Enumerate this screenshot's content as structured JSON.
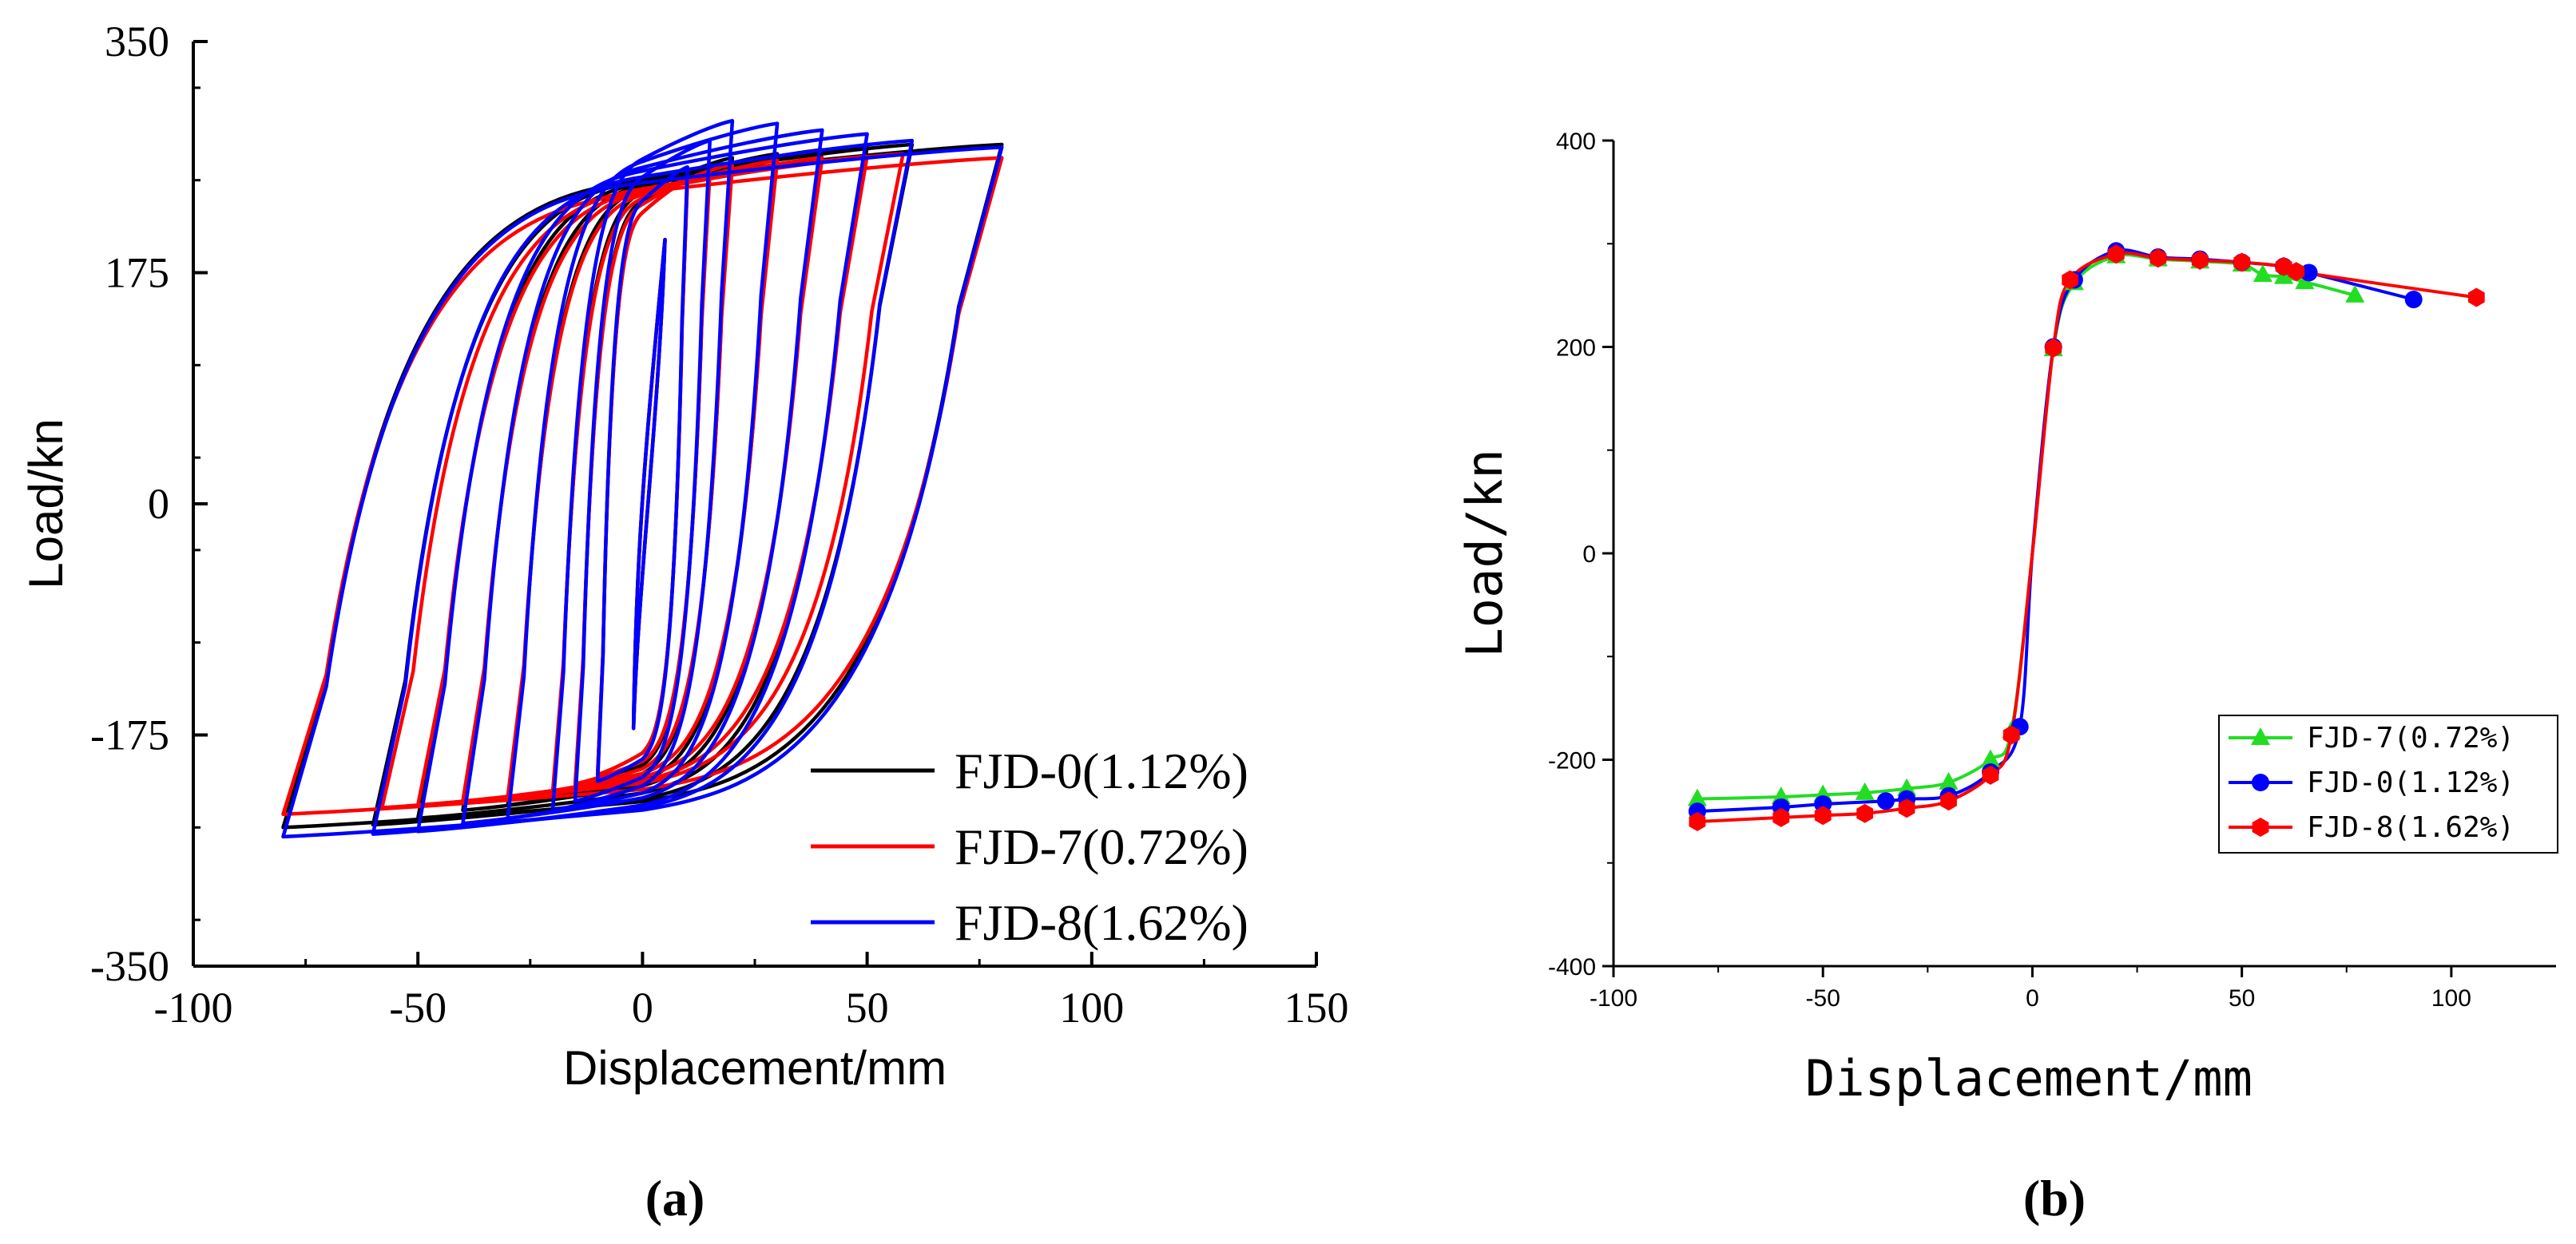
{
  "chart_data": [
    {
      "type": "line",
      "panel": "(a)",
      "xlabel": "Displacement/mm",
      "ylabel": "Load/kn",
      "xlim": [
        -100,
        150
      ],
      "ylim": [
        -350,
        350
      ],
      "xticks": [
        -100,
        -50,
        0,
        50,
        100,
        150
      ],
      "yticks": [
        -350,
        -175,
        0,
        175,
        350
      ],
      "legend_position": "bottom-right",
      "series": [
        {
          "name": "FJD-0(1.12%)",
          "color": "#000000",
          "amplitudes": [
            5,
            10,
            15,
            20,
            30,
            40,
            50,
            60,
            80
          ],
          "peak_pos": [
            200,
            245,
            255,
            262,
            265,
            268,
            270,
            272,
            272
          ],
          "peak_neg": [
            -170,
            -205,
            -215,
            -222,
            -228,
            -232,
            -238,
            -243,
            -245
          ]
        },
        {
          "name": "FJD-7(0.72%)",
          "color": "#ff0000",
          "amplitudes": [
            5,
            10,
            15,
            20,
            30,
            40,
            50,
            58,
            80
          ],
          "peak_pos": [
            200,
            245,
            252,
            257,
            260,
            262,
            263,
            265,
            262
          ],
          "peak_neg": [
            -170,
            -205,
            -212,
            -218,
            -222,
            -225,
            -228,
            -230,
            -235
          ]
        },
        {
          "name": "FJD-8(1.62%)",
          "color": "#0000ff",
          "amplitudes": [
            5,
            10,
            15,
            20,
            30,
            40,
            50,
            60,
            80
          ],
          "peak_pos": [
            200,
            255,
            275,
            290,
            288,
            283,
            280,
            275,
            270
          ],
          "peak_neg": [
            -170,
            -210,
            -225,
            -232,
            -238,
            -242,
            -248,
            -250,
            -252
          ]
        }
      ]
    },
    {
      "type": "line",
      "panel": "(b)",
      "xlabel": "Displacement/mm",
      "ylabel": "Load/kn",
      "xlim": [
        -100,
        125
      ],
      "ylim": [
        -400,
        400
      ],
      "xticks": [
        -100,
        -50,
        0,
        50,
        100
      ],
      "yticks": [
        -400,
        -200,
        0,
        200,
        400
      ],
      "legend_position": "right",
      "series": [
        {
          "name": "FJD-7(0.72%)",
          "color": "#22dd22",
          "marker": "triangle",
          "x": [
            -80,
            -60,
            -50,
            -40,
            -30,
            -20,
            -10,
            -5,
            0,
            5,
            10,
            20,
            30,
            40,
            50,
            55,
            60,
            65,
            77
          ],
          "y": [
            -238,
            -236,
            -234,
            -232,
            -228,
            -222,
            -200,
            -172,
            0,
            198,
            262,
            288,
            285,
            283,
            280,
            270,
            268,
            263,
            250
          ]
        },
        {
          "name": "FJD-0(1.12%)",
          "color": "#0000ff",
          "marker": "circle",
          "x": [
            -80,
            -60,
            -50,
            -35,
            -30,
            -20,
            -10,
            -3,
            0,
            5,
            10,
            20,
            30,
            40,
            50,
            60,
            66,
            91
          ],
          "y": [
            -250,
            -246,
            -243,
            -240,
            -238,
            -235,
            -212,
            -168,
            0,
            200,
            265,
            293,
            287,
            285,
            282,
            278,
            272,
            246
          ]
        },
        {
          "name": "FJD-8(1.62%)",
          "color": "#ff0000",
          "marker": "hexagon",
          "x": [
            -80,
            -60,
            -50,
            -40,
            -30,
            -20,
            -10,
            -5,
            0,
            5,
            9,
            20,
            30,
            40,
            50,
            60,
            63,
            106
          ],
          "y": [
            -260,
            -256,
            -254,
            -252,
            -247,
            -240,
            -215,
            -176,
            0,
            199,
            265,
            290,
            286,
            284,
            282,
            278,
            273,
            248
          ]
        }
      ]
    }
  ]
}
